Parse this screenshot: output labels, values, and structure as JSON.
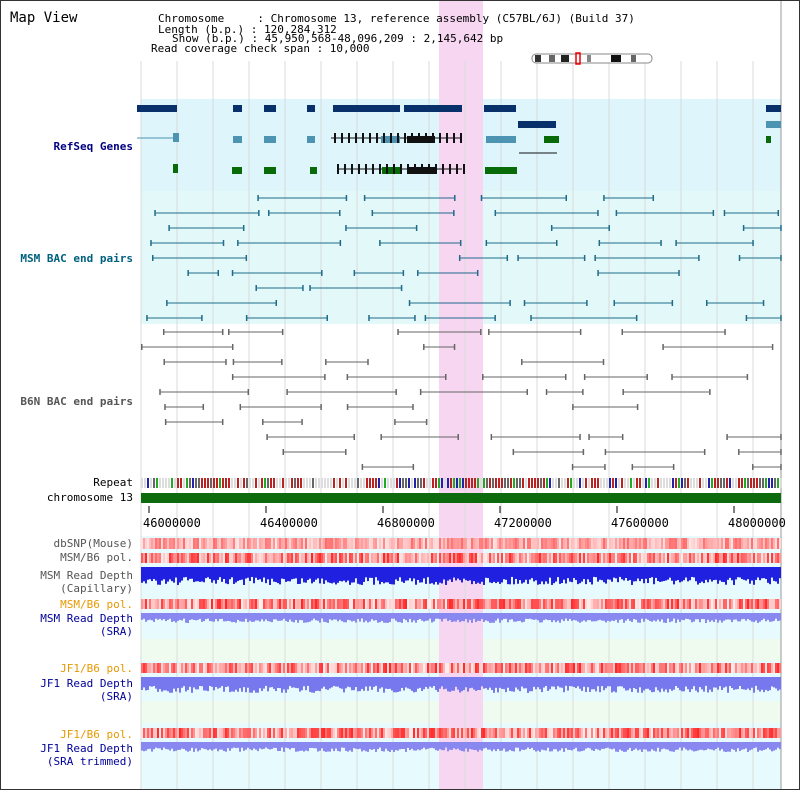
{
  "page": {
    "title": "Map View"
  },
  "header": {
    "line1": "Chromosome     : Chromosome 13, reference assembly (C57BL/6J) (Build 37)",
    "line2": "Length (b.p.) : 120,284,312",
    "line3": "Show (b.p.) : 45,950,568-48,096,209 : 2,145,642 bp",
    "line4": "Read coverage check span : 10,000"
  },
  "colors": {
    "refseq": "#000080",
    "msm": "#006080",
    "b6n": "#555555",
    "sra_label": "#000099",
    "pol_label": "#e69900",
    "highlight": "#f7d6f2",
    "band": "#ddf5fb",
    "chrom": "#0d6b0d"
  },
  "tracks": {
    "refseq": "RefSeq Genes",
    "msm_bac": "MSM BAC end pairs",
    "b6n_bac": "B6N BAC end pairs",
    "repeat": "Repeat",
    "chromosome": "chromosome 13",
    "dbsnp": "dbSNP(Mouse)",
    "msm_b6_pol_1": "MSM/B6 pol.",
    "msm_depth_cap": "MSM Read Depth\n(Capillary)",
    "msm_b6_pol_2": "MSM/B6 pol.",
    "msm_depth_sra": "MSM Read Depth\n(SRA)",
    "jf1_b6_pol_1": "JF1/B6 pol.",
    "jf1_depth_sra": "JF1 Read Depth\n(SRA)",
    "jf1_b6_pol_2": "JF1/B6 pol.",
    "jf1_depth_trim": "JF1 Read Depth\n(SRA trimmed)"
  },
  "axis": {
    "ticks": [
      "46000000",
      "46400000",
      "46800000",
      "47200000",
      "47600000",
      "48000000"
    ]
  }
}
